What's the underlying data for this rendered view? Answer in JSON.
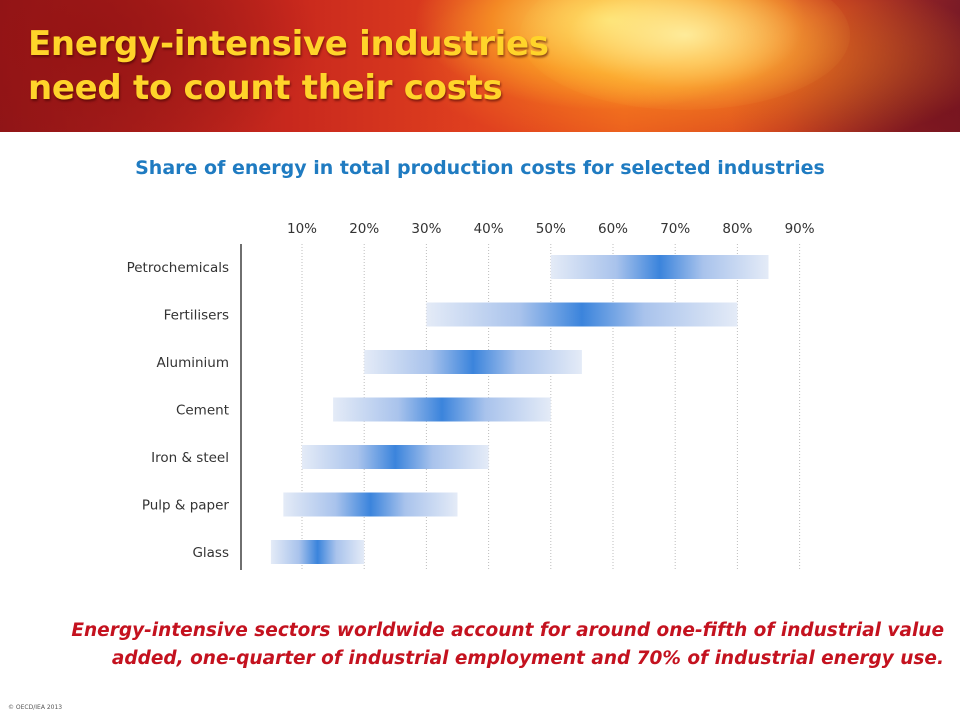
{
  "header": {
    "title_lines": [
      "Energy-intensive industries",
      "need to count their costs"
    ]
  },
  "chart_data": {
    "type": "bar",
    "subtype": "floating-range-horizontal",
    "title": "Share of energy in total production costs for selected industries",
    "xlabel": "",
    "ylabel": "",
    "x_ticks": [
      "10%",
      "20%",
      "30%",
      "40%",
      "50%",
      "60%",
      "70%",
      "80%",
      "90%"
    ],
    "xlim": [
      1,
      100
    ],
    "x_tick_position": "top",
    "grid": "vertical-dotted",
    "categories": [
      "Petrochemicals",
      "Fertilisers",
      "Aluminium",
      "Cement",
      "Iron & steel",
      "Pulp & paper",
      "Glass"
    ],
    "ranges": [
      {
        "category": "Petrochemicals",
        "low": 50,
        "high": 85
      },
      {
        "category": "Fertilisers",
        "low": 30,
        "high": 80
      },
      {
        "category": "Aluminium",
        "low": 20,
        "high": 55
      },
      {
        "category": "Cement",
        "low": 15,
        "high": 50
      },
      {
        "category": "Iron & steel",
        "low": 10,
        "high": 40
      },
      {
        "category": "Pulp & paper",
        "low": 7,
        "high": 35
      },
      {
        "category": "Glass",
        "low": 5,
        "high": 20
      }
    ],
    "bar_color_center": "#3b84dc",
    "bar_color_edge": "#e4ebf7"
  },
  "footer": {
    "summary_lines": [
      "Energy-intensive sectors worldwide account for around one-fifth of industrial value",
      "added, one-quarter of industrial employment and 70% of industrial energy use."
    ],
    "copyright": "© OECD/IEA 2013"
  }
}
